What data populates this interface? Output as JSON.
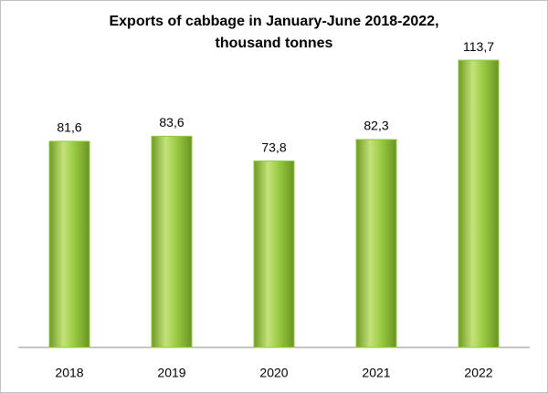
{
  "chart_data": {
    "type": "bar",
    "title": [
      "Exports of cabbage in January-June 2018-2022,",
      "thousand tonnes"
    ],
    "categories": [
      "2018",
      "2019",
      "2020",
      "2021",
      "2022"
    ],
    "values": [
      81.6,
      83.6,
      73.8,
      82.3,
      113.7
    ],
    "value_labels": [
      "81,6",
      "83,6",
      "73,8",
      "82,3",
      "113,7"
    ],
    "color": "#92c83e"
  }
}
